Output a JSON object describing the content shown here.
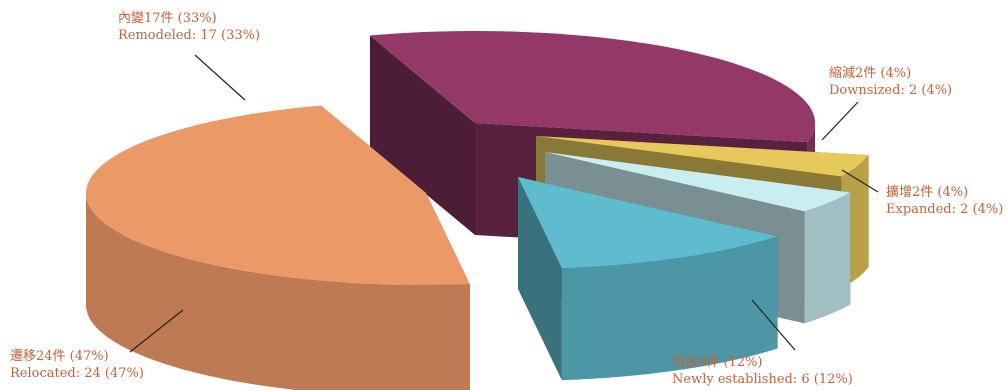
{
  "chart_data": {
    "type": "pie",
    "style": "3d-exploded",
    "slices": [
      {
        "key": "remodeled",
        "label_zh": "內變17件 (33%)",
        "label_en": "Remodeled: 17 (33%)",
        "value": 17,
        "percent": 33,
        "color": "#933867"
      },
      {
        "key": "downsized",
        "label_zh": "縮減2件 (4%)",
        "label_en": "Downsized: 2 (4%)",
        "value": 2,
        "percent": 4,
        "color": "#e6c85b"
      },
      {
        "key": "expanded",
        "label_zh": "擴增2件 (4%)",
        "label_en": "Expanded: 2 (4%)",
        "value": 2,
        "percent": 4,
        "color": "#c9eef2"
      },
      {
        "key": "new",
        "label_zh": "新設6件 (12%)",
        "label_en": "Newly established: 6 (12%)",
        "value": 6,
        "percent": 12,
        "color": "#5fbccf"
      },
      {
        "key": "relocated",
        "label_zh": "遷移24件 (47%)",
        "label_en": "Relocated: 24 (47%)",
        "value": 24,
        "percent": 47,
        "color": "#ec9968"
      }
    ]
  },
  "colors": {
    "label_text": "#c0643a",
    "leader_line": "#222222"
  }
}
